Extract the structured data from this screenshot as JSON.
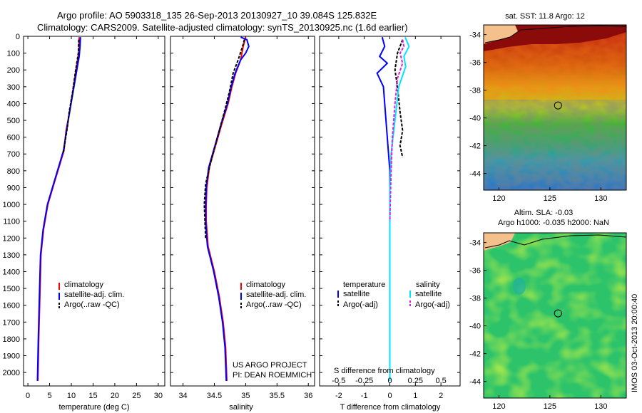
{
  "header": {
    "line1": "Argo profile: AO 5903318_135 26-Sep-2013 20130927_10 39.084S 125.832E",
    "line2": "Climatology: CARS2009. Satellite-adjusted climatology: synTS_20130925.nc (1.6d earlier)"
  },
  "side_label": "IMOS 03-Oct-2013 20:00:40",
  "colors": {
    "climatology": "#ff0000",
    "satellite": "#0000ff",
    "argo": "#000000",
    "salinity_satellite": "#00e5ff",
    "salinity_argo": "#e020e0"
  },
  "chart_data": [
    {
      "type": "line",
      "xlabel": "temperature (deg C)",
      "ylim": [
        2080,
        0
      ],
      "xlim": [
        -1,
        31.5
      ],
      "xticks": [
        0,
        5,
        10,
        15,
        20,
        25,
        30
      ],
      "yticks": [
        0,
        100,
        200,
        300,
        400,
        500,
        600,
        700,
        800,
        900,
        1000,
        1100,
        1200,
        1300,
        1400,
        1500,
        1600,
        1700,
        1800,
        1900,
        2000
      ],
      "legend": [
        "climatology",
        "satellite-adj. clim.",
        "Argo(..raw -QC)"
      ],
      "series": [
        {
          "name": "climatology",
          "color": "#ff0000",
          "dash": false,
          "points": [
            [
              11.8,
              5
            ],
            [
              11.8,
              60
            ],
            [
              11.6,
              120
            ],
            [
              11.2,
              180
            ],
            [
              10.5,
              300
            ],
            [
              9.6,
              450
            ],
            [
              8.8,
              560
            ],
            [
              8.3,
              680
            ],
            [
              6.2,
              860
            ],
            [
              4.6,
              1000
            ],
            [
              3.6,
              1150
            ],
            [
              3.0,
              1300
            ],
            [
              2.8,
              1500
            ],
            [
              2.5,
              1800
            ],
            [
              2.3,
              2050
            ]
          ]
        },
        {
          "name": "satellite-adj. clim.",
          "color": "#0000ff",
          "dash": false,
          "points": [
            [
              12.1,
              5
            ],
            [
              12.0,
              60
            ],
            [
              11.8,
              120
            ],
            [
              11.4,
              180
            ],
            [
              10.6,
              300
            ],
            [
              9.6,
              450
            ],
            [
              8.9,
              560
            ],
            [
              8.2,
              680
            ],
            [
              6.1,
              860
            ],
            [
              4.5,
              1000
            ],
            [
              3.5,
              1150
            ],
            [
              2.9,
              1300
            ],
            [
              2.7,
              1500
            ],
            [
              2.4,
              1800
            ],
            [
              2.2,
              2050
            ]
          ]
        },
        {
          "name": "Argo(..raw -QC)",
          "color": "#000000",
          "dash": true,
          "points": [
            [
              11.7,
              20
            ],
            [
              11.6,
              100
            ],
            [
              11.0,
              200
            ],
            [
              10.3,
              330
            ],
            [
              9.5,
              450
            ],
            [
              9.1,
              540
            ],
            [
              8.6,
              620
            ],
            [
              8.1,
              700
            ]
          ]
        }
      ]
    },
    {
      "type": "line",
      "xlabel": "salinity",
      "ylim": [
        2080,
        0
      ],
      "xlim": [
        33.8,
        36.1
      ],
      "xticks": [
        34,
        34.5,
        35,
        35.5,
        36
      ],
      "legend": [
        "climatology",
        "satellite-adj. clim.",
        "Argo(..raw -QC)"
      ],
      "annotation": [
        "US ARGO PROJECT",
        "PI: DEAN ROEMMICH"
      ],
      "series": [
        {
          "name": "climatology",
          "color": "#ff0000",
          "dash": false,
          "points": [
            [
              35.0,
              5
            ],
            [
              34.96,
              60
            ],
            [
              34.92,
              140
            ],
            [
              34.84,
              220
            ],
            [
              34.78,
              300
            ],
            [
              34.72,
              400
            ],
            [
              34.62,
              520
            ],
            [
              34.52,
              650
            ],
            [
              34.42,
              780
            ],
            [
              34.38,
              900
            ],
            [
              34.37,
              1000
            ],
            [
              34.37,
              1100
            ],
            [
              34.4,
              1250
            ],
            [
              34.5,
              1400
            ],
            [
              34.58,
              1550
            ],
            [
              34.64,
              1700
            ],
            [
              34.68,
              1850
            ],
            [
              34.7,
              2050
            ]
          ]
        },
        {
          "name": "satellite-adj. clim.",
          "color": "#0000ff",
          "dash": false,
          "points": [
            [
              34.92,
              5
            ],
            [
              35.02,
              20
            ],
            [
              35.05,
              60
            ],
            [
              35.0,
              100
            ],
            [
              34.92,
              140
            ],
            [
              34.83,
              220
            ],
            [
              34.77,
              300
            ],
            [
              34.71,
              400
            ],
            [
              34.61,
              520
            ],
            [
              34.51,
              650
            ],
            [
              34.41,
              780
            ],
            [
              34.37,
              900
            ],
            [
              34.36,
              1000
            ],
            [
              34.36,
              1100
            ],
            [
              34.39,
              1250
            ],
            [
              34.49,
              1400
            ],
            [
              34.57,
              1550
            ],
            [
              34.63,
              1700
            ],
            [
              34.67,
              1850
            ],
            [
              34.69,
              2050
            ]
          ]
        },
        {
          "name": "Argo(..raw -QC)",
          "color": "#000000",
          "dash": true,
          "points": [
            [
              34.98,
              20
            ],
            [
              34.95,
              60
            ],
            [
              34.88,
              140
            ],
            [
              34.8,
              220
            ],
            [
              34.74,
              330
            ],
            [
              34.66,
              450
            ],
            [
              34.55,
              600
            ],
            [
              34.44,
              750
            ],
            [
              34.36,
              880
            ],
            [
              34.34,
              1000
            ],
            [
              34.35,
              1100
            ],
            [
              34.36,
              1200
            ]
          ]
        }
      ]
    },
    {
      "type": "line",
      "xlabel": "T difference from climatology",
      "xlabel_top": "S difference from climatology",
      "ylim": [
        2080,
        0
      ],
      "xlim": [
        -2.75,
        2.75
      ],
      "xticks": [
        -2,
        -1,
        0,
        1,
        2
      ],
      "xticks_top_labels": [
        "-0.5",
        "-0.25",
        "0",
        "0.25",
        "0.5"
      ],
      "legend_titles": [
        "temperature",
        "salinity"
      ],
      "legend": [
        "satellite",
        "Argo(-adj)",
        "satellite",
        "Argo(-adj)"
      ],
      "series": [
        {
          "name": "temperature satellite",
          "color": "#0000ff",
          "dash": false,
          "points": [
            [
              -0.3,
              5
            ],
            [
              -0.2,
              60
            ],
            [
              -0.4,
              120
            ],
            [
              -0.1,
              160
            ],
            [
              -0.5,
              220
            ],
            [
              -0.25,
              300
            ],
            [
              -0.15,
              500
            ],
            [
              0.0,
              800
            ],
            [
              0.0,
              2050
            ]
          ]
        },
        {
          "name": "temperature Argo(-adj)",
          "color": "#000000",
          "dash": true,
          "points": [
            [
              0.5,
              20
            ],
            [
              0.3,
              100
            ],
            [
              0.2,
              200
            ],
            [
              0.3,
              300
            ],
            [
              0.4,
              450
            ],
            [
              0.5,
              560
            ],
            [
              0.4,
              650
            ],
            [
              0.5,
              720
            ]
          ]
        },
        {
          "name": "salinity satellite",
          "color": "#00e5ff",
          "dash": false,
          "points": [
            [
              0.6,
              5
            ],
            [
              0.75,
              60
            ],
            [
              0.55,
              120
            ],
            [
              0.62,
              180
            ],
            [
              0.35,
              300
            ],
            [
              0.2,
              500
            ],
            [
              0.05,
              700
            ],
            [
              0.0,
              900
            ],
            [
              0.0,
              2050
            ]
          ]
        },
        {
          "name": "salinity Argo(-adj)",
          "color": "#e020e0",
          "dash": true,
          "points": [
            [
              0.5,
              20
            ],
            [
              0.55,
              60
            ],
            [
              0.4,
              100
            ],
            [
              0.5,
              160
            ],
            [
              0.3,
              250
            ],
            [
              0.2,
              400
            ],
            [
              0.1,
              600
            ],
            [
              0.05,
              800
            ],
            [
              0.0,
              1100
            ]
          ]
        }
      ]
    },
    {
      "type": "heatmap",
      "title": "sat. SST: 11.8 Argo: 12",
      "xlim": [
        118.5,
        132.5
      ],
      "ylim": [
        -45.2,
        -33.3
      ],
      "xticks": [
        120,
        125,
        130
      ],
      "yticks": [
        -34,
        -36,
        -38,
        -40,
        -42,
        -44
      ],
      "marker": [
        125.8,
        -39.1
      ]
    },
    {
      "type": "heatmap",
      "title": [
        "Altim. SLA: -0.03",
        "Argo h1000: -0.035 h2000: NaN"
      ],
      "xlim": [
        118.5,
        132.5
      ],
      "ylim": [
        -45.2,
        -33.3
      ],
      "xticks": [
        120,
        125,
        130
      ],
      "yticks": [
        -34,
        -36,
        -38,
        -40,
        -42,
        -44
      ],
      "marker": [
        125.8,
        -39.1
      ]
    }
  ]
}
